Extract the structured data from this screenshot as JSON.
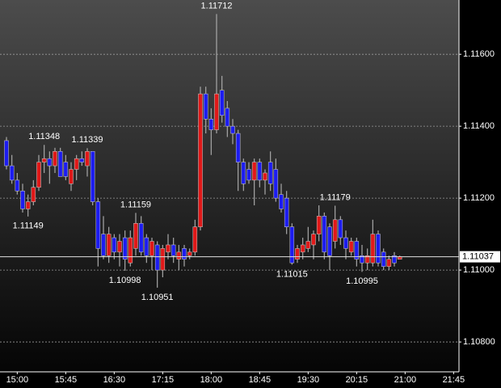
{
  "chart_data": {
    "type": "candlestick",
    "x": [
      "14:50",
      "14:55",
      "15:00",
      "15:05",
      "15:10",
      "15:15",
      "15:20",
      "15:25",
      "15:30",
      "15:35",
      "15:40",
      "15:45",
      "15:50",
      "15:55",
      "16:00",
      "16:05",
      "16:10",
      "16:15",
      "16:20",
      "16:25",
      "16:30",
      "16:35",
      "16:40",
      "16:45",
      "16:50",
      "16:55",
      "17:00",
      "17:05",
      "17:10",
      "17:15",
      "17:20",
      "17:25",
      "17:30",
      "17:35",
      "17:40",
      "17:45",
      "17:50",
      "17:55",
      "18:00",
      "18:05",
      "18:10",
      "18:15",
      "18:20",
      "18:25",
      "18:30",
      "18:35",
      "18:40",
      "18:45",
      "18:50",
      "18:55",
      "19:00",
      "19:05",
      "19:10",
      "19:15",
      "19:20",
      "19:25",
      "19:30",
      "19:35",
      "19:40",
      "19:45",
      "19:50",
      "19:55",
      "20:00",
      "20:05",
      "20:10",
      "20:15",
      "20:20",
      "20:25",
      "20:30",
      "20:35",
      "20:40",
      "20:45",
      "20:50",
      "20:55"
    ],
    "open": [
      1.1136,
      1.1129,
      1.1125,
      1.1122,
      1.1117,
      1.1119,
      1.1123,
      1.113,
      1.1131,
      1.1129,
      1.1133,
      1.113,
      1.1124,
      1.1128,
      1.1131,
      1.1129,
      1.1133,
      1.1119,
      1.111,
      1.1104,
      1.1109,
      1.1105,
      1.1109,
      1.1102,
      1.1106,
      1.1113,
      1.1109,
      1.1104,
      1.1107,
      1.11,
      1.1105,
      1.1107,
      1.1103,
      1.1106,
      1.1104,
      1.1105,
      1.1112,
      1.1149,
      1.1142,
      1.1139,
      1.115,
      1.1145,
      1.114,
      1.1138,
      1.113,
      1.1128,
      1.1125,
      1.113,
      1.1125,
      1.113,
      1.1128,
      1.1121,
      1.112,
      1.1112,
      1.1103,
      1.1105,
      1.1106,
      1.1107,
      1.111,
      1.1115,
      1.1112,
      1.1108,
      1.1114,
      1.1109,
      1.1105,
      1.1108,
      1.1104,
      1.1102,
      1.1102,
      1.111,
      1.1105,
      1.1101,
      1.1104,
      1.1103
    ],
    "high": [
      1.1137,
      1.1132,
      1.1127,
      1.1124,
      1.1121,
      1.1125,
      1.1132,
      1.11348,
      1.1133,
      1.1134,
      1.1134,
      1.1132,
      1.113,
      1.1132,
      1.1133,
      1.11339,
      1.1133,
      1.112,
      1.1115,
      1.1112,
      1.111,
      1.111,
      1.1111,
      1.1111,
      1.11159,
      1.1115,
      1.111,
      1.1109,
      1.1108,
      1.1107,
      1.111,
      1.1109,
      1.1107,
      1.1107,
      1.1106,
      1.1114,
      1.1151,
      1.1151,
      1.1145,
      1.11712,
      1.1154,
      1.1147,
      1.1142,
      1.1139,
      1.1131,
      1.113,
      1.1131,
      1.1131,
      1.1128,
      1.1133,
      1.1131,
      1.1124,
      1.1122,
      1.1113,
      1.1107,
      1.1109,
      1.1112,
      1.1111,
      1.1118,
      1.1116,
      1.1113,
      1.11179,
      1.1115,
      1.1111,
      1.1109,
      1.1109,
      1.1107,
      1.1106,
      1.1114,
      1.1111,
      1.1106,
      1.1104,
      1.1105,
      1.1104
    ],
    "low": [
      1.1128,
      1.1124,
      1.1121,
      1.1116,
      1.11149,
      1.1118,
      1.1122,
      1.1127,
      1.1124,
      1.1127,
      1.1126,
      1.1125,
      1.1122,
      1.1125,
      1.1129,
      1.1126,
      1.1118,
      1.1101,
      1.1103,
      1.1102,
      1.1103,
      1.1101,
      1.10998,
      1.1101,
      1.1104,
      1.1104,
      1.1102,
      1.11,
      1.10951,
      1.1098,
      1.1103,
      1.1102,
      1.11,
      1.1101,
      1.1103,
      1.1104,
      1.1111,
      1.1138,
      1.1132,
      1.1138,
      1.1141,
      1.1137,
      1.1135,
      1.1122,
      1.1122,
      1.1124,
      1.1118,
      1.1123,
      1.1121,
      1.1122,
      1.1119,
      1.1116,
      1.111,
      1.11015,
      1.1102,
      1.1103,
      1.1105,
      1.1103,
      1.1108,
      1.1103,
      1.11,
      1.1106,
      1.1107,
      1.1103,
      1.1104,
      1.1101,
      1.10995,
      1.11,
      1.1101,
      1.1101,
      1.11,
      1.11,
      1.1101,
      1.1103
    ],
    "close": [
      1.1129,
      1.1125,
      1.1122,
      1.1117,
      1.1119,
      1.1123,
      1.113,
      1.1131,
      1.1129,
      1.1133,
      1.1126,
      1.1126,
      1.1128,
      1.1131,
      1.113,
      1.1133,
      1.1119,
      1.1106,
      1.1104,
      1.111,
      1.1105,
      1.1108,
      1.1103,
      1.1109,
      1.1113,
      1.1105,
      1.1104,
      1.1108,
      1.11,
      1.1106,
      1.1107,
      1.1104,
      1.1105,
      1.1103,
      1.1105,
      1.1112,
      1.1149,
      1.1142,
      1.1139,
      1.1149,
      1.1143,
      1.114,
      1.1138,
      1.113,
      1.1124,
      1.1125,
      1.113,
      1.1125,
      1.1127,
      1.1124,
      1.112,
      1.1117,
      1.1112,
      1.1102,
      1.1106,
      1.1107,
      1.1108,
      1.111,
      1.1115,
      1.1105,
      1.1104,
      1.1114,
      1.1109,
      1.1106,
      1.1108,
      1.1103,
      1.1102,
      1.1104,
      1.111,
      1.1102,
      1.1101,
      1.1103,
      1.1102,
      1.11037
    ],
    "up_color": "#e01818",
    "down_color": "#1c1cf0",
    "wick_color": "#a8a8a8",
    "xlim": [
      "14:44",
      "21:50"
    ],
    "xticks": [
      "15:00",
      "15:45",
      "16:30",
      "17:15",
      "18:00",
      "18:45",
      "19:30",
      "20:15",
      "21:00",
      "21:45"
    ],
    "ylim": [
      1.10717,
      1.11751
    ],
    "yticks": [
      {
        "value": 1.108,
        "label": "1.10800"
      },
      {
        "value": 1.11,
        "label": "1.11000"
      },
      {
        "value": 1.112,
        "label": "1.11200"
      },
      {
        "value": 1.114,
        "label": "1.11400"
      },
      {
        "value": 1.116,
        "label": "1.11600"
      }
    ],
    "grid": true,
    "last_price": 1.11037,
    "annotations": [
      {
        "x": "15:25",
        "value": 1.11348
      },
      {
        "x": "15:10",
        "value": 1.11149
      },
      {
        "x": "16:05",
        "value": 1.11339
      },
      {
        "x": "16:50",
        "value": 1.11159
      },
      {
        "x": "16:40",
        "value": 1.10998
      },
      {
        "x": "17:10",
        "value": 1.10951
      },
      {
        "x": "18:05",
        "value": 1.11712
      },
      {
        "x": "19:15",
        "value": 1.11015
      },
      {
        "x": "19:55",
        "value": 1.11179
      },
      {
        "x": "20:20",
        "value": 1.10995
      }
    ]
  }
}
